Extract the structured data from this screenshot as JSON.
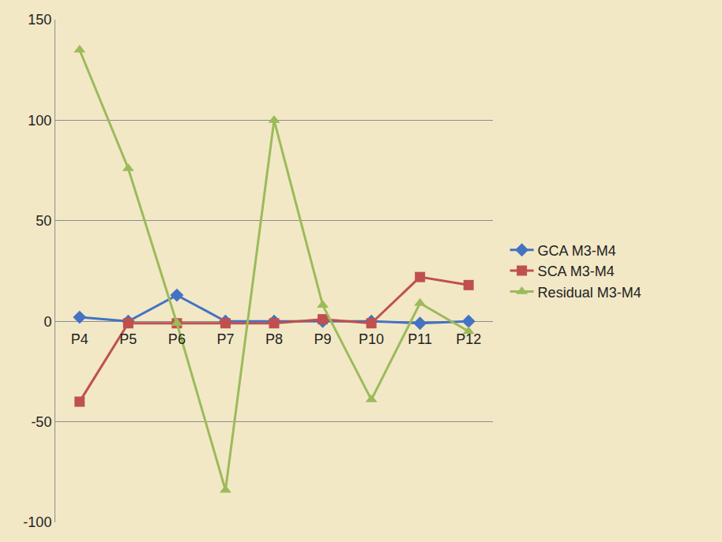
{
  "chart_data": {
    "type": "line",
    "categories": [
      "P4",
      "P5",
      "P6",
      "P7",
      "P8",
      "P9",
      "P10",
      "P11",
      "P12"
    ],
    "series": [
      {
        "name": "GCA M3-M4",
        "color": "#4472c4",
        "marker": "diamond",
        "values": [
          2,
          0,
          13,
          0,
          0,
          0,
          0,
          -1,
          0
        ]
      },
      {
        "name": "SCA M3-M4",
        "color": "#c0504d",
        "marker": "square",
        "values": [
          -40,
          -1,
          -1,
          -1,
          -1,
          1,
          -1,
          22,
          18
        ]
      },
      {
        "name": "Residual M3-M4",
        "color": "#9bbb59",
        "marker": "triangle-up",
        "values": [
          135,
          76,
          -1,
          -84,
          100,
          8,
          -39,
          9,
          -5
        ]
      }
    ],
    "ylim": [
      -100,
      150
    ],
    "yticks": [
      -100,
      -50,
      0,
      50,
      100,
      150
    ],
    "grid": true,
    "legend": "right"
  }
}
